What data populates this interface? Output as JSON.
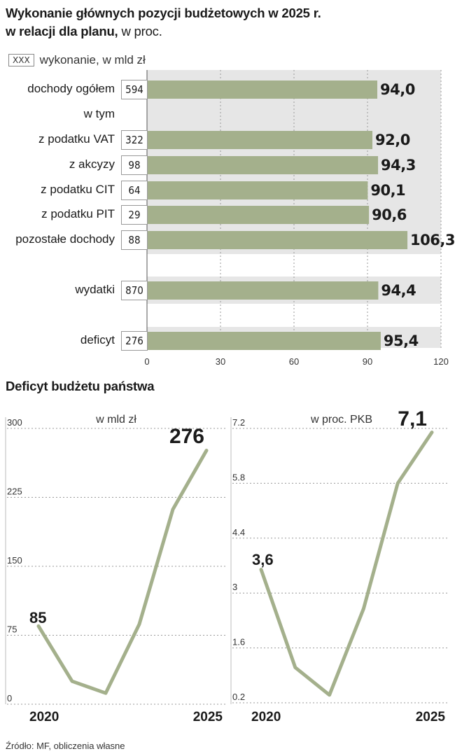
{
  "title": {
    "bold": "Wykonanie głównych pozycji budżetowych w 2025 r.",
    "bold2": "w relacji dla planu,",
    "plain": " w proc."
  },
  "legend": {
    "box": "XXX",
    "label": "wykonanie, w mld zł"
  },
  "colors": {
    "bar": "#a4b08c",
    "band": "#e6e6e6",
    "line": "#a4b08c",
    "grid": "#999999"
  },
  "chart_data": [
    {
      "type": "bar",
      "orientation": "horizontal",
      "title": "Wykonanie głównych pozycji budżetowych w 2025 r. w relacji dla planu, w proc.",
      "xlim": [
        0,
        120
      ],
      "xticks": [
        0,
        30,
        60,
        90,
        120
      ],
      "xtick_labels": [
        "0",
        "30",
        "60",
        "90",
        "120"
      ],
      "header_row": "w tym",
      "rows": [
        {
          "label": "dochody ogółem",
          "amount": "594",
          "value": 94.0,
          "value_label": "94,0"
        },
        {
          "label": "z podatku VAT",
          "amount": "322",
          "value": 92.0,
          "value_label": "92,0"
        },
        {
          "label": "z akcyzy",
          "amount": "98",
          "value": 94.3,
          "value_label": "94,3"
        },
        {
          "label": "z podatku CIT",
          "amount": "64",
          "value": 90.1,
          "value_label": "90,1"
        },
        {
          "label": "z podatku PIT",
          "amount": "29",
          "value": 90.6,
          "value_label": "90,6"
        },
        {
          "label": "pozostałe dochody",
          "amount": "88",
          "value": 106.3,
          "value_label": "106,3"
        },
        {
          "label": "wydatki",
          "amount": "870",
          "value": 94.4,
          "value_label": "94,4"
        },
        {
          "label": "deficyt",
          "amount": "276",
          "value": 95.4,
          "value_label": "95,4"
        }
      ]
    },
    {
      "type": "line",
      "title": "w mld zł",
      "x": [
        2020,
        2021,
        2022,
        2023,
        2024,
        2025
      ],
      "values": [
        85,
        25,
        12,
        87,
        212,
        276
      ],
      "ylim": [
        0,
        300
      ],
      "yticks": [
        0,
        75,
        150,
        225,
        300
      ],
      "ytick_labels": [
        "0",
        "75",
        "150",
        "225",
        "300"
      ],
      "xtick_labels": [
        "2020",
        "2025"
      ],
      "annotations": [
        "85",
        "276"
      ]
    },
    {
      "type": "line",
      "title": "w proc. PKB",
      "x": [
        2020,
        2021,
        2022,
        2023,
        2024,
        2025
      ],
      "values": [
        3.6,
        1.1,
        0.4,
        2.6,
        5.8,
        7.1
      ],
      "ylim": [
        0.2,
        7.2
      ],
      "yticks": [
        0.2,
        1.6,
        3,
        4.4,
        5.8,
        7.2
      ],
      "ytick_labels": [
        "0.2",
        "1.6",
        "3",
        "4.4",
        "5.8",
        "7.2"
      ],
      "xtick_labels": [
        "2020",
        "2025"
      ],
      "annotations": [
        "3,6",
        "7,1"
      ]
    }
  ],
  "section2_title": "Deficyt budżetu państwa",
  "source": "Źródło: MF, obliczenia własne"
}
